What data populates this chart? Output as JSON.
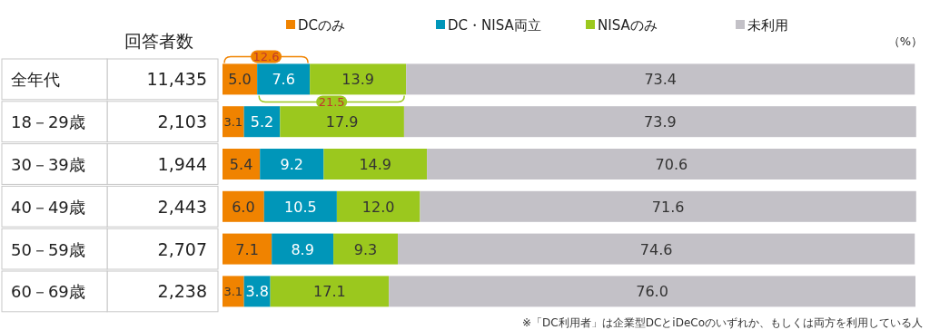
{
  "chart_data": [
    {
      "type": "other",
      "title": "回答者数",
      "annotations": [
        "11,435",
        "2,103",
        "1,944",
        "2,443",
        "2,707",
        "2,238"
      ]
    },
    {
      "type": "bar",
      "orientation": "horizontal",
      "stacked": true,
      "xlabel": "（%）",
      "categories": [
        "全年代",
        "18－29歳",
        "30－39歳",
        "40－49歳",
        "50－59歳",
        "60－69歳"
      ],
      "series": [
        {
          "name": "DCのみ",
          "color": "#f08300",
          "values": [
            5.0,
            3.1,
            5.4,
            6.0,
            7.1,
            3.1
          ],
          "value_labels": [
            "5.0",
            "3.1",
            "5.4",
            "6.0",
            "7.1",
            "3.1"
          ]
        },
        {
          "name": "DC・NISA両立",
          "color": "#0096b9",
          "values": [
            7.6,
            5.2,
            9.2,
            10.5,
            8.9,
            3.8
          ],
          "value_labels": [
            "7.6",
            "5.2",
            "9.2",
            "10.5",
            "8.9",
            "3.8"
          ]
        },
        {
          "name": "NISAのみ",
          "color": "#9bc81e",
          "values": [
            13.9,
            17.9,
            14.9,
            12.0,
            9.3,
            17.1
          ],
          "value_labels": [
            "13.9",
            "17.9",
            "14.9",
            "12.0",
            "9.3",
            "17.1"
          ]
        },
        {
          "name": "未利用",
          "color": "#c3c1c7",
          "values": [
            73.4,
            73.9,
            70.6,
            71.6,
            74.6,
            76.0
          ],
          "value_labels": [
            "73.4",
            "73.9",
            "70.6",
            "71.6",
            "74.6",
            "76.0"
          ]
        }
      ],
      "xlim": [
        0,
        100
      ],
      "tick_labels": false,
      "legend": "top",
      "annotations": [
        "12.6",
        "21.5",
        "※「DC利用者」は企業型DCとiDeCoのいずれか、もしくは両方を利用している人"
      ]
    }
  ]
}
